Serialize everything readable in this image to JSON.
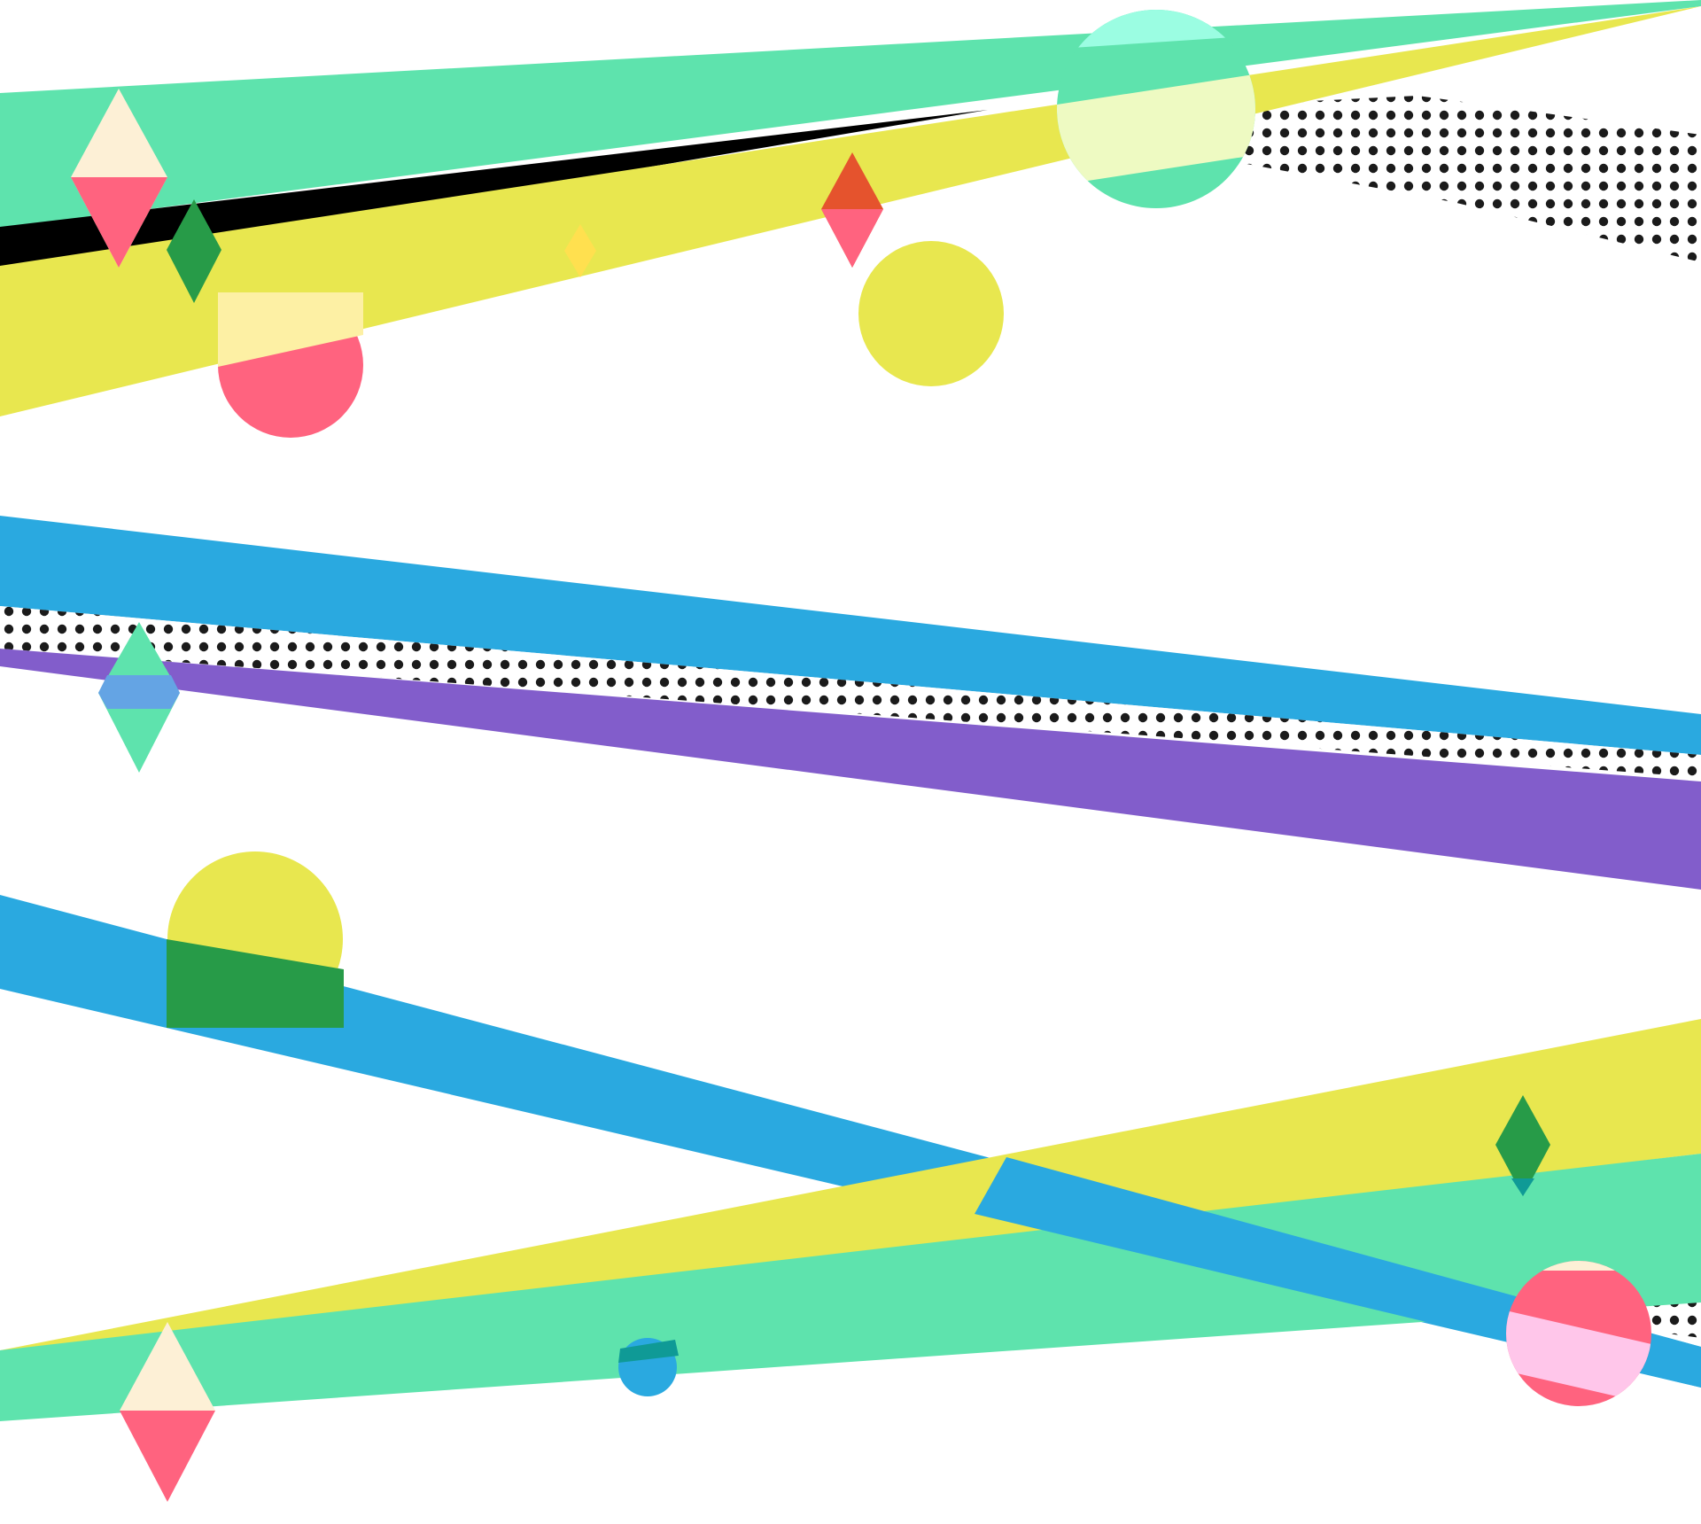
{
  "scene": {
    "kind": "abstract-geometric-artwork",
    "background": "#ffffff"
  },
  "colors": {
    "green": "#5ee3ad",
    "yellow": "#e8e74f",
    "black": "#000000",
    "pink": "#ff637f",
    "cream": "#fdf0d6",
    "dark_green": "#279b48",
    "blue": "#2aa9e0",
    "purple": "#825dcb",
    "orange_red": "#e5532d",
    "light_yellow": "#ffe04f",
    "pale_pink": "#ffc6ea",
    "teal": "#0f9a96",
    "dot": "#1b1b1b"
  }
}
